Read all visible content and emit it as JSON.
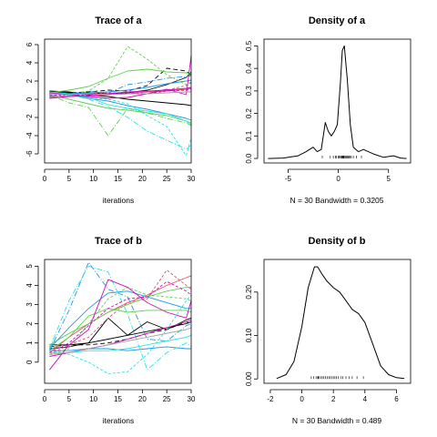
{
  "colors": {
    "palette": [
      "#000000",
      "#DF536B",
      "#61D04F",
      "#2297E6",
      "#28E2E5",
      "#CD0BBC",
      "#9E9E9E"
    ]
  },
  "chart_data": [
    {
      "type": "line",
      "title": "Trace of a",
      "xlabel": "iterations",
      "ylabel": "",
      "xlim": [
        0,
        30
      ],
      "ylim": [
        -7,
        6.6
      ],
      "xticks": [
        0,
        5,
        10,
        15,
        20,
        25,
        30
      ],
      "yticks": [
        -6,
        -4,
        -2,
        0,
        2,
        4,
        6
      ],
      "ytick_labels": [
        "-6",
        "-4",
        "-2",
        "0",
        "2",
        "4",
        "6"
      ],
      "x": [
        1,
        5,
        9,
        13,
        17,
        21,
        25,
        29,
        30
      ],
      "series": [
        {
          "color": "#000000",
          "dash": "",
          "values": [
            0.8,
            0.7,
            0.7,
            0.6,
            0.7,
            1.0,
            1.6,
            2.4,
            3.0
          ]
        },
        {
          "color": "#000000",
          "dash": "5,3",
          "values": [
            0.6,
            0.7,
            0.8,
            1.0,
            0.9,
            1.5,
            3.4,
            3.1,
            2.6
          ]
        },
        {
          "color": "#000000",
          "dash": "",
          "values": [
            0.9,
            0.8,
            0.5,
            0.3,
            0.0,
            -0.2,
            -0.4,
            -0.6,
            -0.7
          ]
        },
        {
          "color": "#DF536B",
          "dash": "",
          "values": [
            0.2,
            0.3,
            0.4,
            0.5,
            0.6,
            0.8,
            0.9,
            1.1,
            1.2
          ]
        },
        {
          "color": "#DF536B",
          "dash": "3,2",
          "values": [
            0.7,
            0.6,
            0.6,
            0.7,
            0.7,
            0.8,
            1.0,
            1.5,
            1.8
          ]
        },
        {
          "color": "#61D04F",
          "dash": "",
          "values": [
            0.7,
            1.0,
            1.4,
            2.3,
            3.1,
            3.3,
            3.0,
            2.9,
            2.8
          ]
        },
        {
          "color": "#61D04F",
          "dash": "3,2",
          "values": [
            0.4,
            0.6,
            0.9,
            2.3,
            5.8,
            4.4,
            2.7,
            1.6,
            1.9
          ]
        },
        {
          "color": "#61D04F",
          "dash": "",
          "values": [
            0.5,
            0.0,
            -0.5,
            -1.0,
            -1.2,
            -1.5,
            -1.8,
            -2.4,
            -2.6
          ]
        },
        {
          "color": "#61D04F",
          "dash": "6,2,1,2",
          "values": [
            0.5,
            -0.4,
            -0.9,
            -4.0,
            -1.0,
            -1.5,
            -2.1,
            -2.6,
            -2.9
          ]
        },
        {
          "color": "#2297E6",
          "dash": "",
          "values": [
            0.6,
            0.6,
            0.7,
            0.8,
            1.0,
            1.3,
            1.7,
            2.0,
            2.1
          ]
        },
        {
          "color": "#2297E6",
          "dash": "6,2,1,2",
          "values": [
            0.3,
            0.4,
            0.9,
            0.7,
            1.6,
            1.9,
            2.3,
            2.5,
            2.6
          ]
        },
        {
          "color": "#2297E6",
          "dash": "",
          "values": [
            0.8,
            0.5,
            0.1,
            -0.2,
            -0.7,
            -1.1,
            -1.6,
            -2.1,
            -2.3
          ]
        },
        {
          "color": "#28E2E5",
          "dash": "",
          "values": [
            0.8,
            0.6,
            0.2,
            -0.6,
            -1.0,
            -1.3,
            -1.6,
            -2.4,
            -2.8
          ]
        },
        {
          "color": "#28E2E5",
          "dash": "3,2",
          "values": [
            0.5,
            0.4,
            0.2,
            0.0,
            -0.5,
            -1.8,
            -3.0,
            -6.2,
            -4.2
          ]
        },
        {
          "color": "#28E2E5",
          "dash": "6,2,1,2",
          "values": [
            0.8,
            0.5,
            0.0,
            -0.8,
            -2.0,
            -3.5,
            -4.5,
            -5.5,
            -5.0
          ]
        },
        {
          "color": "#CD0BBC",
          "dash": "",
          "values": [
            0.1,
            0.3,
            0.4,
            0.6,
            0.8,
            0.9,
            1.0,
            1.2,
            1.3
          ]
        },
        {
          "color": "#CD0BBC",
          "dash": "",
          "values": [
            0.7,
            0.5,
            0.3,
            0.1,
            0.2,
            0.6,
            1.1,
            0.5,
            4.8
          ]
        },
        {
          "color": "#CD0BBC",
          "dash": "3,2",
          "values": [
            0.4,
            0.5,
            0.5,
            0.6,
            0.7,
            0.6,
            0.9,
            1.0,
            1.1
          ]
        },
        {
          "color": "#9E9E9E",
          "dash": "",
          "values": [
            0.6,
            0.5,
            0.6,
            0.5,
            0.6,
            0.6,
            0.7,
            0.8,
            0.8
          ]
        }
      ]
    },
    {
      "type": "area",
      "title": "Density of a",
      "xlabel": "N = 30   Bandwidth = 0.3205",
      "ylabel": "",
      "xlim": [
        -7.4,
        7.2
      ],
      "ylim": [
        -0.02,
        0.53
      ],
      "xticks": [
        -5,
        0,
        5
      ],
      "yticks": [
        0.0,
        0.1,
        0.2,
        0.3,
        0.4,
        0.5
      ],
      "ytick_labels": [
        "0.0",
        "0.1",
        "0.2",
        "0.3",
        "0.4",
        "0.5"
      ],
      "x": [
        -7.0,
        -5.5,
        -4.0,
        -3.2,
        -2.5,
        -2.1,
        -1.7,
        -1.3,
        -1.0,
        -0.7,
        -0.4,
        -0.1,
        0.2,
        0.4,
        0.6,
        0.9,
        1.2,
        1.5,
        2.0,
        2.5,
        3.5,
        4.5,
        5.5,
        6.2,
        6.8
      ],
      "values": [
        0.0,
        0.002,
        0.012,
        0.03,
        0.05,
        0.03,
        0.04,
        0.16,
        0.12,
        0.1,
        0.12,
        0.15,
        0.33,
        0.48,
        0.5,
        0.35,
        0.15,
        0.05,
        0.03,
        0.04,
        0.02,
        0.005,
        0.012,
        0.002,
        0.0
      ],
      "rug": [
        -1.6,
        -0.8,
        -0.5,
        -0.3,
        -0.2,
        0.0,
        0.1,
        0.2,
        0.3,
        0.35,
        0.4,
        0.45,
        0.5,
        0.55,
        0.6,
        0.7,
        0.8,
        0.9,
        1.0,
        1.1,
        1.2,
        1.3,
        1.5,
        1.8,
        2.3
      ]
    },
    {
      "type": "line",
      "title": "Trace of b",
      "xlabel": "iterations",
      "ylabel": "",
      "xlim": [
        0,
        30
      ],
      "ylim": [
        -1.1,
        5.35
      ],
      "xticks": [
        0,
        5,
        10,
        15,
        20,
        25,
        30
      ],
      "yticks": [
        0,
        1,
        2,
        3,
        4,
        5
      ],
      "ytick_labels": [
        "0",
        "1",
        "2",
        "3",
        "4",
        "5"
      ],
      "x": [
        1,
        5,
        9,
        13,
        17,
        21,
        25,
        29,
        30
      ],
      "series": [
        {
          "color": "#000000",
          "dash": "",
          "values": [
            0.7,
            0.8,
            1.0,
            1.2,
            1.4,
            1.6,
            1.8,
            2.0,
            2.1
          ]
        },
        {
          "color": "#000000",
          "dash": "",
          "values": [
            0.9,
            0.9,
            1.0,
            2.3,
            1.4,
            2.1,
            1.7,
            2.2,
            2.3
          ]
        },
        {
          "color": "#000000",
          "dash": "5,3",
          "values": [
            0.8,
            0.9,
            0.9,
            1.0,
            1.2,
            1.5,
            1.7,
            2.1,
            2.0
          ]
        },
        {
          "color": "#DF536B",
          "dash": "",
          "values": [
            0.5,
            1.3,
            2.0,
            2.6,
            3.1,
            3.5,
            4.0,
            4.4,
            4.5
          ]
        },
        {
          "color": "#DF536B",
          "dash": "3,2",
          "values": [
            0.4,
            0.9,
            1.3,
            2.3,
            3.1,
            3.3,
            4.8,
            4.0,
            3.8
          ]
        },
        {
          "color": "#61D04F",
          "dash": "",
          "values": [
            0.9,
            1.5,
            2.0,
            2.6,
            3.0,
            3.4,
            3.7,
            3.9,
            3.9
          ]
        },
        {
          "color": "#61D04F",
          "dash": "3,2",
          "values": [
            0.4,
            0.7,
            2.0,
            3.3,
            3.9,
            3.5,
            3.4,
            3.3,
            3.2
          ]
        },
        {
          "color": "#61D04F",
          "dash": "",
          "values": [
            0.6,
            1.3,
            2.4,
            2.8,
            2.6,
            2.7,
            2.7,
            2.7,
            2.6
          ]
        },
        {
          "color": "#2297E6",
          "dash": "",
          "values": [
            0.7,
            1.8,
            2.8,
            3.6,
            3.7,
            3.4,
            3.1,
            2.8,
            2.8
          ]
        },
        {
          "color": "#2297E6",
          "dash": "6,2,1,2",
          "values": [
            0.6,
            2.7,
            5.2,
            3.8,
            3.4,
            1.2,
            1.1,
            1.9,
            2.0
          ]
        },
        {
          "color": "#2297E6",
          "dash": "",
          "values": [
            0.6,
            0.6,
            0.7,
            0.7,
            0.6,
            0.7,
            0.8,
            0.7,
            0.7
          ]
        },
        {
          "color": "#28E2E5",
          "dash": "",
          "values": [
            0.5,
            0.5,
            0.6,
            0.6,
            0.7,
            0.9,
            1.1,
            1.3,
            1.4
          ]
        },
        {
          "color": "#28E2E5",
          "dash": "3,2",
          "values": [
            0.6,
            0.4,
            0.0,
            -0.6,
            -0.5,
            0.4,
            1.7,
            3.2,
            3.5
          ]
        },
        {
          "color": "#28E2E5",
          "dash": "6,2,1,2",
          "values": [
            0.7,
            3.2,
            5.0,
            4.7,
            2.5,
            -0.4,
            0.5,
            1.0,
            0.8
          ]
        },
        {
          "color": "#CD0BBC",
          "dash": "",
          "values": [
            -0.4,
            0.9,
            1.7,
            4.3,
            3.9,
            3.1,
            2.6,
            2.3,
            3.2
          ]
        },
        {
          "color": "#CD0BBC",
          "dash": "",
          "values": [
            0.3,
            0.5,
            0.7,
            0.9,
            1.2,
            1.5,
            1.8,
            2.1,
            2.2
          ]
        },
        {
          "color": "#CD0BBC",
          "dash": "3,2",
          "values": [
            0.5,
            1.0,
            1.9,
            2.8,
            3.3,
            3.4,
            4.2,
            3.7,
            3.5
          ]
        },
        {
          "color": "#9E9E9E",
          "dash": "",
          "values": [
            0.4,
            0.5,
            0.7,
            0.9,
            1.1,
            1.3,
            1.5,
            1.7,
            1.8
          ]
        }
      ]
    },
    {
      "type": "area",
      "title": "Density of b",
      "xlabel": "N = 30   Bandwidth = 0.489",
      "ylabel": "",
      "xlim": [
        -2.4,
        6.9
      ],
      "ylim": [
        -0.01,
        0.275
      ],
      "xticks": [
        -2,
        0,
        2,
        4,
        6
      ],
      "yticks": [
        0.0,
        0.1,
        0.2
      ],
      "ytick_labels": [
        "0.00",
        "0.10",
        "0.20"
      ],
      "x": [
        -1.6,
        -1.0,
        -0.5,
        0.0,
        0.4,
        0.8,
        1.0,
        1.3,
        1.6,
        2.0,
        2.4,
        2.8,
        3.2,
        3.6,
        4.0,
        4.5,
        5.0,
        5.5,
        6.0,
        6.5
      ],
      "values": [
        0.001,
        0.01,
        0.04,
        0.12,
        0.21,
        0.258,
        0.258,
        0.24,
        0.225,
        0.21,
        0.2,
        0.18,
        0.16,
        0.15,
        0.13,
        0.08,
        0.03,
        0.01,
        0.003,
        0.001
      ],
      "rug": [
        0.6,
        0.75,
        0.9,
        1.0,
        1.05,
        1.1,
        1.2,
        1.3,
        1.4,
        1.5,
        1.6,
        1.7,
        1.8,
        1.9,
        2.0,
        2.1,
        2.2,
        2.3,
        2.5,
        2.6,
        2.8,
        3.0,
        3.2,
        3.5,
        3.9
      ]
    }
  ]
}
